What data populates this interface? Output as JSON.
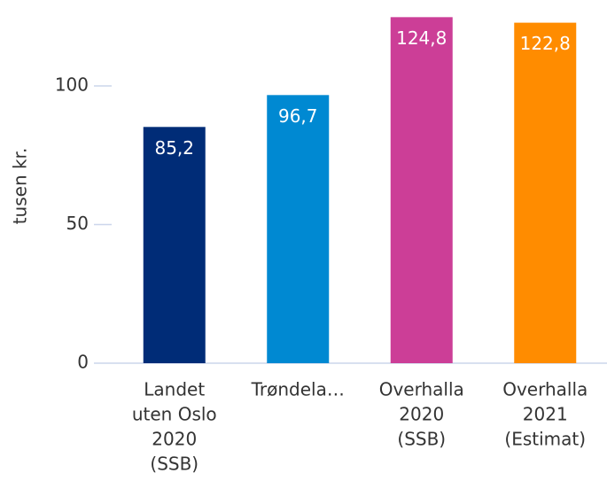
{
  "chart_data": {
    "type": "bar",
    "y_label": "tusen kr.",
    "categories": [
      [
        "Landet",
        "uten Oslo",
        "2020",
        "(SSB)"
      ],
      [
        "Trøndela…"
      ],
      [
        "Overhalla",
        "2020",
        "(SSB)"
      ],
      [
        "Overhalla",
        "2021",
        "(Estimat)"
      ]
    ],
    "values": [
      85.2,
      96.7,
      124.8,
      122.8
    ],
    "value_labels": [
      "85,2",
      "96,7",
      "124,8",
      "122,8"
    ],
    "colors": [
      "#002c77",
      "#0089d2",
      "#cc3e97",
      "#ff8c00"
    ],
    "ylim": [
      0,
      126
    ],
    "yticks": [
      0,
      50,
      100
    ]
  }
}
